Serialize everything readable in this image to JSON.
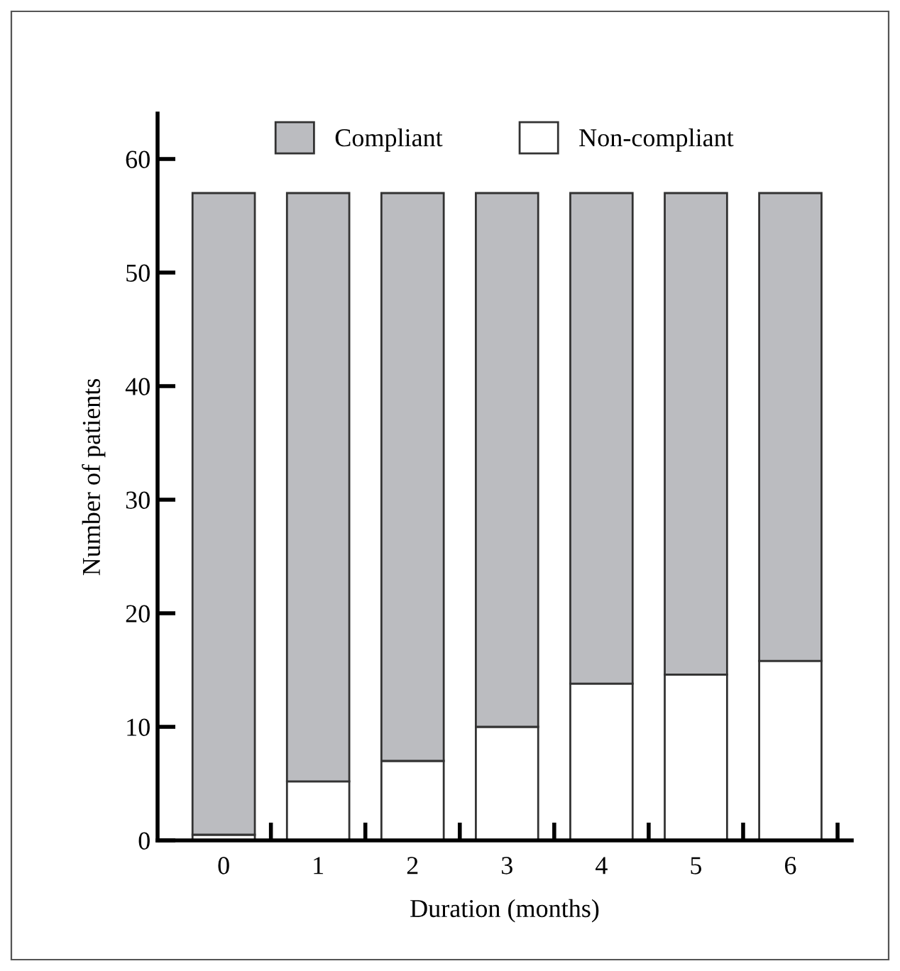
{
  "chart_data": {
    "type": "bar",
    "stacked": true,
    "xlabel": "Duration (months)",
    "ylabel": "Number of patients",
    "categories": [
      "0",
      "1",
      "2",
      "3",
      "4",
      "5",
      "6"
    ],
    "series": [
      {
        "name": "Non-compliant",
        "color": "#ffffff",
        "values": [
          0.5,
          5.2,
          7,
          10,
          13.8,
          14.6,
          15.8
        ]
      },
      {
        "name": "Compliant",
        "color": "#bbbcc0",
        "values": [
          56.5,
          51.8,
          50,
          47,
          43.2,
          42.4,
          41.2
        ]
      }
    ],
    "ylim": [
      0,
      64
    ],
    "yticks": [
      0,
      10,
      20,
      30,
      40,
      50,
      60
    ],
    "grid": false,
    "legend": "top"
  }
}
